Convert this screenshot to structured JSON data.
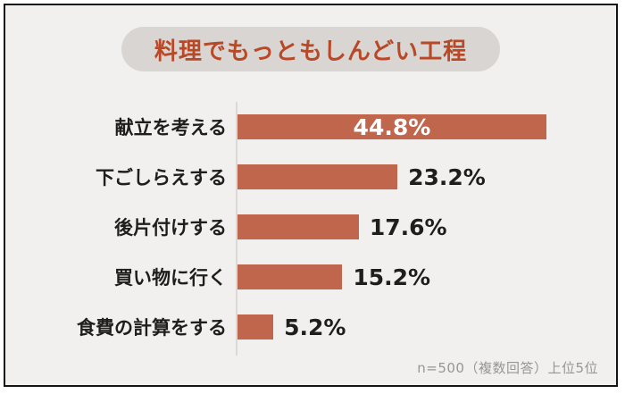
{
  "title": "料理でもっともしんどい工程",
  "footer": {
    "note": "n=500（複数回答）上位5位"
  },
  "colors": {
    "background": "#F2F0EE",
    "frame_border": "#141414",
    "pill_background": "#D8D5D2",
    "title_text": "#B84826",
    "bar_fill": "#C0664D",
    "category_text": "#1E1E1E",
    "value_text_inside": "#FFFFFF",
    "value_text_outside": "#1E1E1E",
    "footer_text": "#969696",
    "axis_line": "#DBD9D6"
  },
  "chart_data": {
    "type": "bar",
    "orientation": "horizontal",
    "title": "料理でもっともしんどい工程",
    "categories": [
      "献立を考える",
      "下ごしらえする",
      "後片付けする",
      "買い物に行く",
      "食費の計算をする"
    ],
    "values": [
      44.8,
      23.2,
      17.6,
      15.2,
      5.2
    ],
    "value_labels": [
      "44.8%",
      "23.2%",
      "17.6%",
      "15.2%",
      "5.2%"
    ],
    "xlabel": "",
    "ylabel": "",
    "xlim": [
      0,
      50
    ],
    "grid": false,
    "legend": "none",
    "value_label_position": [
      "inside-center",
      "outside-end",
      "outside-end",
      "outside-end",
      "outside-end"
    ],
    "note": "n=500（複数回答）上位5位"
  }
}
